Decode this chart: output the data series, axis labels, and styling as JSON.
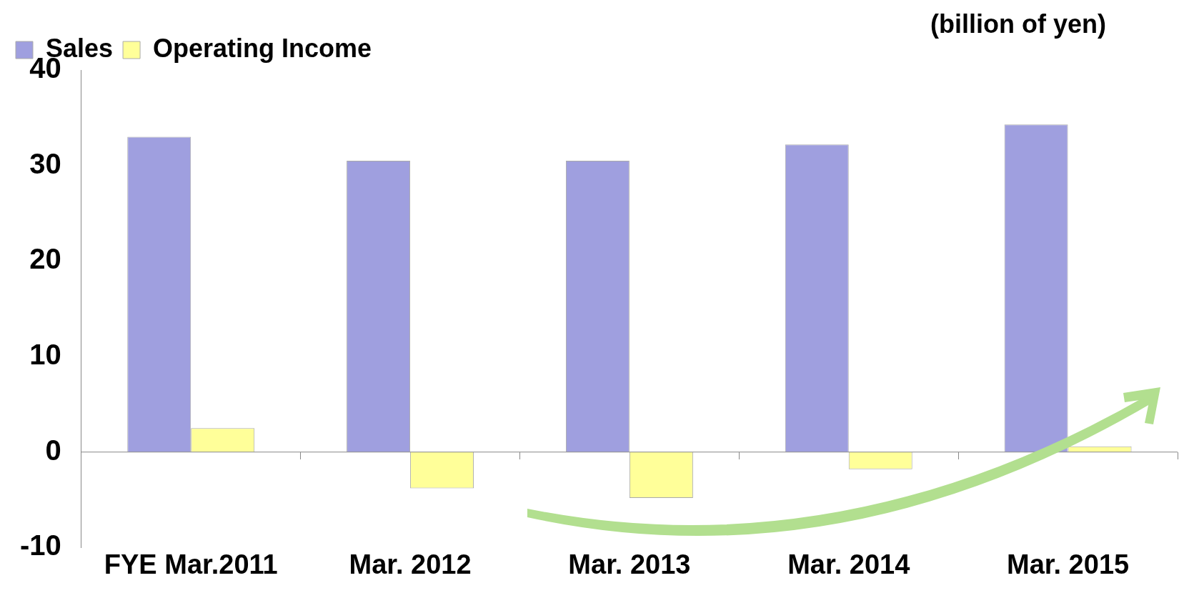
{
  "chart_data": {
    "type": "bar",
    "categories": [
      "FYE Mar.2011",
      "Mar. 2012",
      "Mar. 2013",
      "Mar. 2014",
      "Mar. 2015"
    ],
    "series": [
      {
        "name": "Sales",
        "color": "#9f9fdf",
        "values": [
          33.0,
          30.5,
          30.5,
          32.2,
          34.3
        ]
      },
      {
        "name": "Operating Income",
        "color": "#ffff99",
        "values": [
          2.5,
          -3.8,
          -4.8,
          -1.8,
          0.6
        ]
      }
    ],
    "ylim": [
      -10,
      40
    ],
    "yticks": [
      -10,
      0,
      10,
      20,
      30,
      40
    ],
    "grid": false,
    "legend": "top left",
    "ref_lines": [
      {
        "axis": "y",
        "value": 0,
        "color": "#888888",
        "line_style": "solid"
      }
    ],
    "annotations": [
      "(billion of yen)"
    ]
  }
}
